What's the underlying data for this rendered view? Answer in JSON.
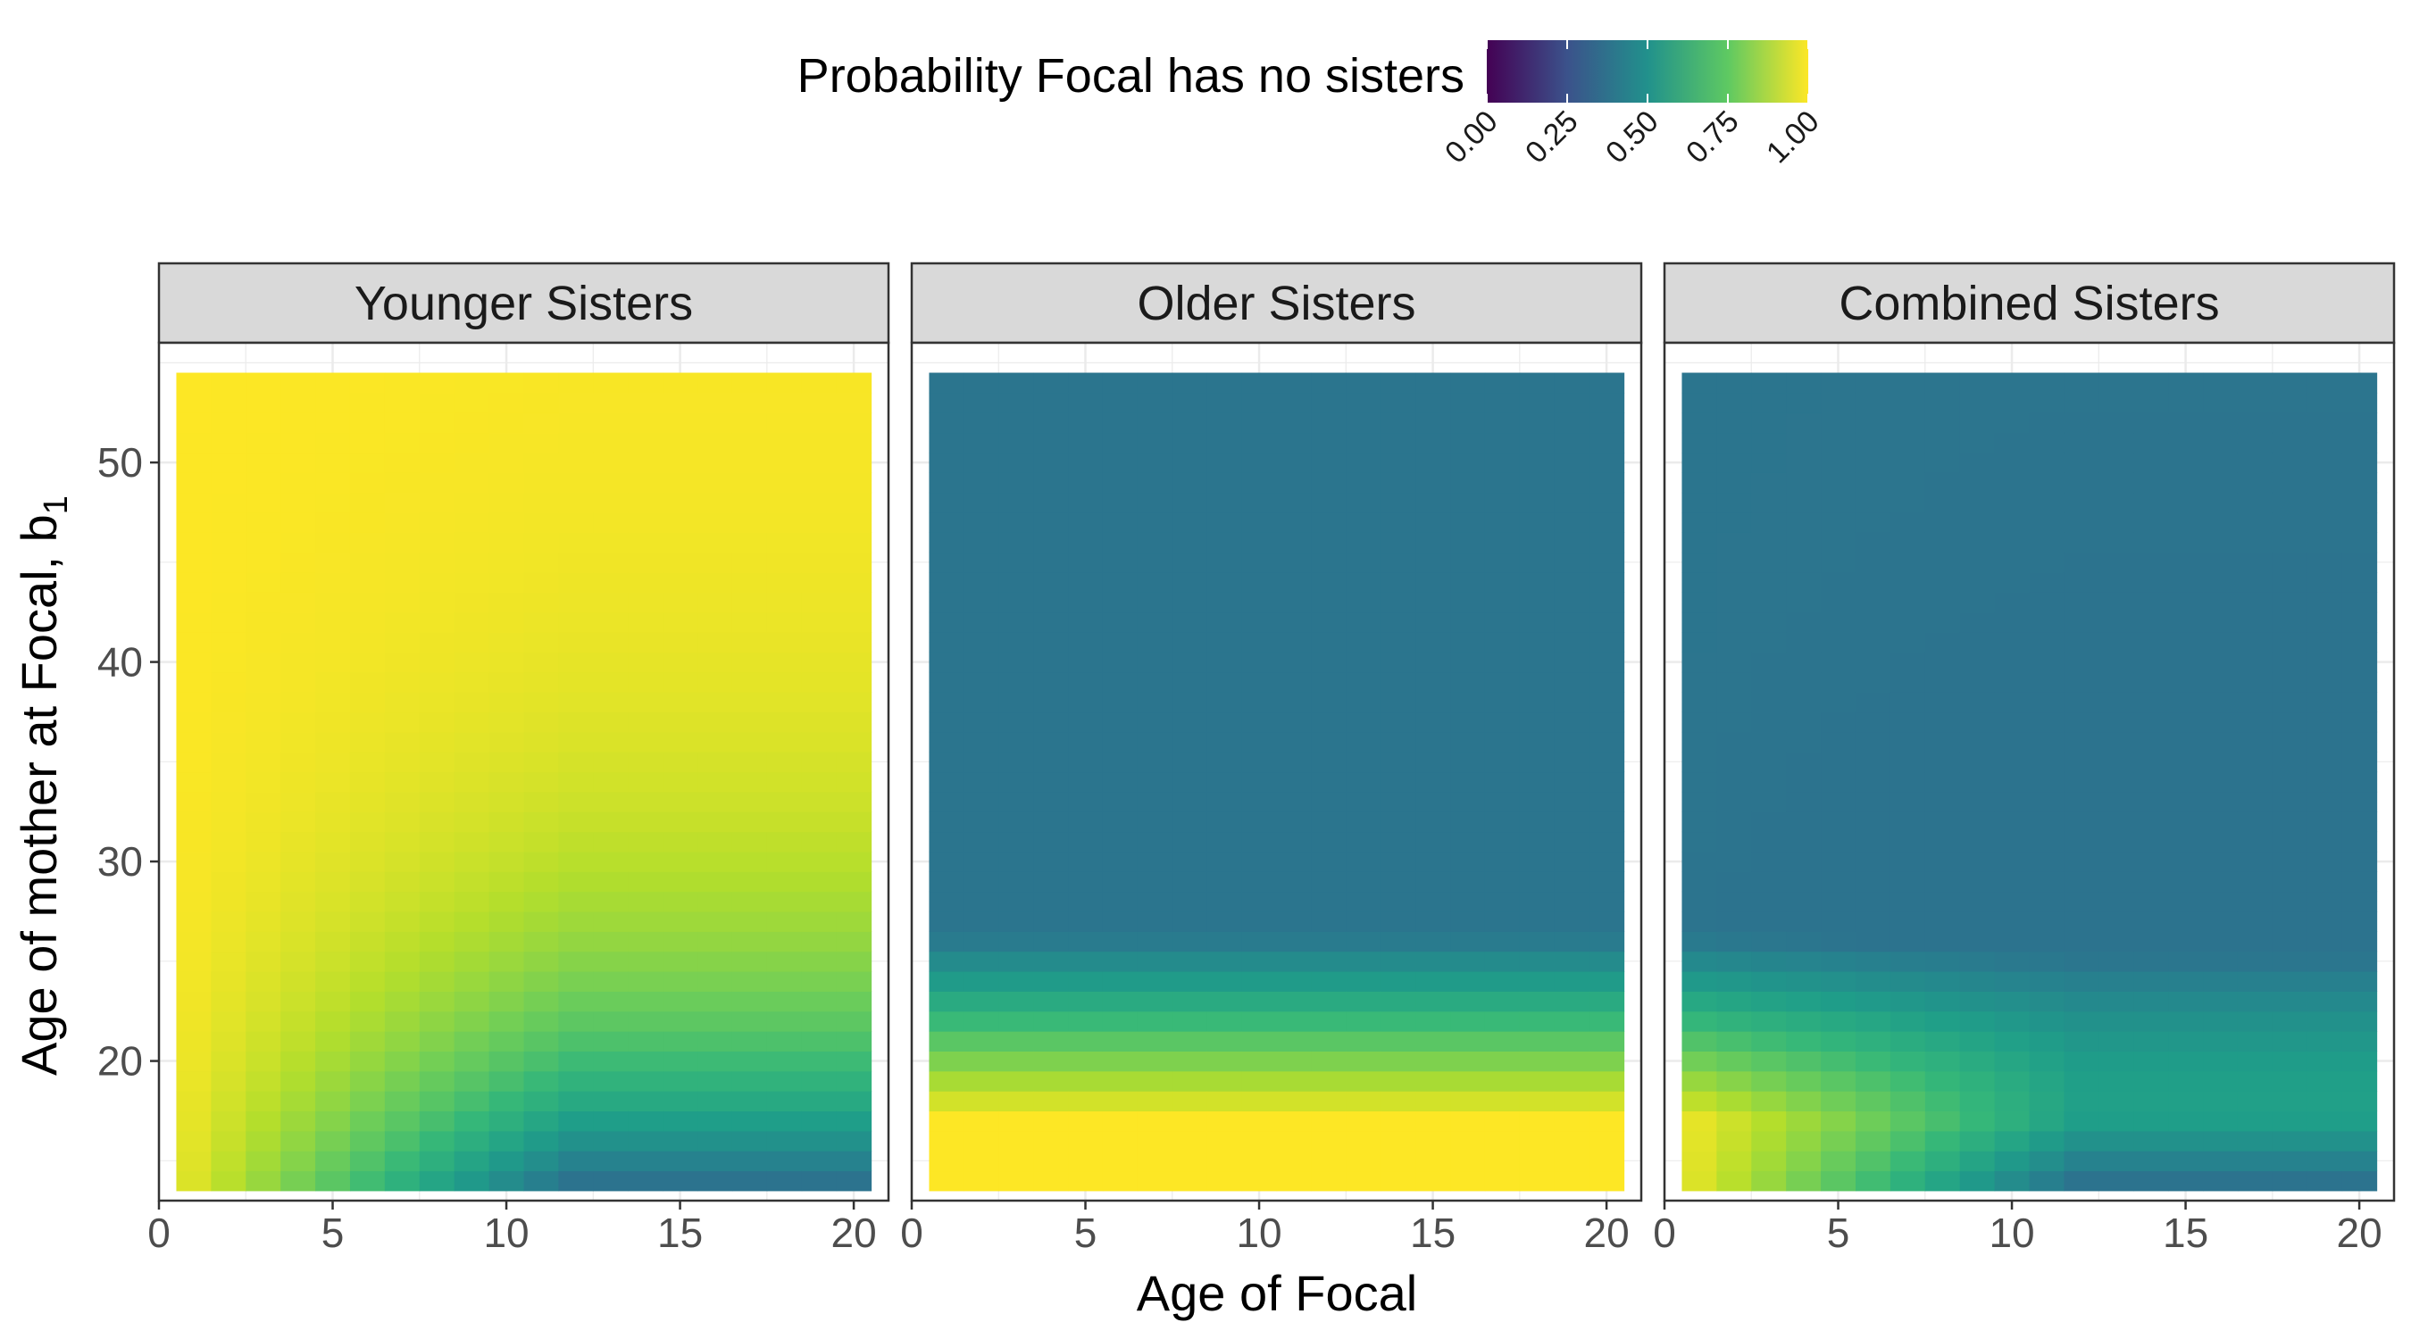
{
  "chart_data": {
    "type": "heatmap",
    "xlabel": "Age of Focal",
    "ylabel": "Age of mother at Focal, b",
    "ylabel_subscript": "1",
    "x_range": [
      1,
      20
    ],
    "y_range": [
      14,
      54
    ],
    "xlim": [
      0,
      21
    ],
    "ylim": [
      13,
      56
    ],
    "x_ticks": [
      0,
      5,
      10,
      15,
      20
    ],
    "y_ticks": [
      20,
      30,
      40,
      50
    ],
    "legend": {
      "title": "Probability Focal has no sisters",
      "placement": "top",
      "ticks": [
        "0.00",
        "0.25",
        "0.50",
        "0.75",
        "1.00"
      ],
      "colors": [
        "#440154",
        "#3b528b",
        "#21918c",
        "#5ec962",
        "#fde725"
      ]
    },
    "panels": [
      {
        "title": "Younger Sisters",
        "model": "younger",
        "summary": {
          "value_at_x1_y14": 0.97,
          "value_at_x20_y14": 0.38,
          "value_at_x20_y54": 1.0
        }
      },
      {
        "title": "Older Sisters",
        "model": "older",
        "summary": {
          "value_at_y14": 1.0,
          "value_at_y22": 0.75,
          "value_at_y54": 0.39
        }
      },
      {
        "title": "Combined Sisters",
        "model": "combined",
        "summary": {
          "value_at_x1_y14": 0.97,
          "value_at_x20_y14": 0.38,
          "value_at_x20_y54": 0.39
        }
      }
    ]
  }
}
